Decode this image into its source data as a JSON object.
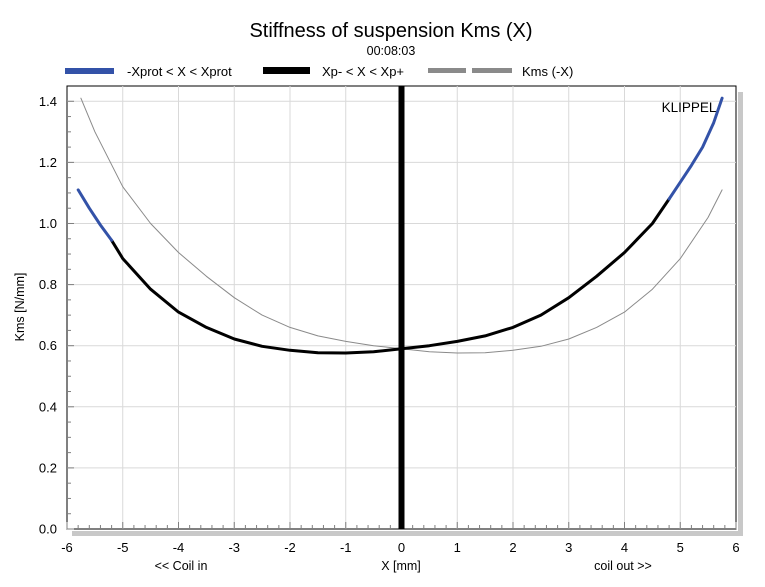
{
  "chart_data": {
    "type": "line",
    "title": "Stiffness of suspension Kms (X)",
    "subtitle": "00:08:03",
    "xlabel": "X [mm]",
    "xlabel_left": "<< Coil in",
    "xlabel_right": "coil out >>",
    "ylabel": "Kms [N/mm]",
    "watermark": "KLIPPEL",
    "xlim": [
      -6,
      6
    ],
    "ylim": [
      0,
      1.45
    ],
    "xticks": [
      -6,
      -5,
      -4,
      -3,
      -2,
      -1,
      0,
      1,
      2,
      3,
      4,
      5,
      6
    ],
    "yticks": [
      0.0,
      0.2,
      0.4,
      0.6,
      0.8,
      1.0,
      1.2,
      1.4
    ],
    "grid": true,
    "legend_position": "top",
    "vertical_marker_x": 0,
    "series": [
      {
        "name": "-Xprot < X < Xprot",
        "color": "#3352a8",
        "x": [
          -5.8,
          -5.6,
          -5.4,
          -5.2,
          4.8,
          5.0,
          5.2,
          5.4,
          5.6,
          5.75
        ],
        "y": [
          1.11,
          1.05,
          0.995,
          0.945,
          1.08,
          1.135,
          1.19,
          1.25,
          1.33,
          1.41
        ]
      },
      {
        "name": "Xp- < X < Xp+",
        "color": "#000000",
        "x": [
          -5.2,
          -5.0,
          -4.5,
          -4.0,
          -3.5,
          -3.0,
          -2.5,
          -2.0,
          -1.5,
          -1.0,
          -0.5,
          0.0,
          0.5,
          1.0,
          1.5,
          2.0,
          2.5,
          3.0,
          3.5,
          4.0,
          4.5,
          4.8
        ],
        "y": [
          0.945,
          0.885,
          0.785,
          0.71,
          0.66,
          0.622,
          0.598,
          0.585,
          0.577,
          0.576,
          0.58,
          0.59,
          0.6,
          0.614,
          0.632,
          0.66,
          0.7,
          0.757,
          0.827,
          0.905,
          1.0,
          1.08
        ]
      },
      {
        "name": "Kms (-X)",
        "color": "#8a8a8a",
        "x": [
          -5.75,
          -5.5,
          -5.0,
          -4.5,
          -4.0,
          -3.5,
          -3.0,
          -2.5,
          -2.0,
          -1.5,
          -1.0,
          -0.5,
          0.0,
          0.5,
          1.0,
          1.5,
          2.0,
          2.5,
          3.0,
          3.5,
          4.0,
          4.5,
          5.0,
          5.5,
          5.75
        ],
        "y": [
          1.41,
          1.3,
          1.12,
          1.0,
          0.905,
          0.827,
          0.757,
          0.7,
          0.66,
          0.632,
          0.614,
          0.6,
          0.59,
          0.58,
          0.576,
          0.577,
          0.585,
          0.598,
          0.622,
          0.66,
          0.71,
          0.785,
          0.885,
          1.02,
          1.11
        ]
      }
    ]
  }
}
